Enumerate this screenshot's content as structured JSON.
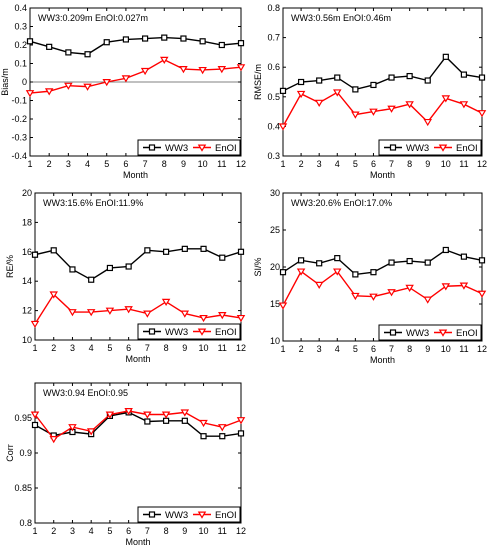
{
  "colors": {
    "ww3": "#000000",
    "enoi": "#ff0000",
    "zero_line": "#808080"
  },
  "legend": {
    "ww3": "WW3",
    "enoi": "EnOI"
  },
  "chart_data": [
    {
      "type": "line",
      "annotation": "WW3:0.209m  EnOI:0.027m",
      "xlabel": "Month",
      "ylabel": "Bias/m",
      "x": [
        1,
        2,
        3,
        4,
        5,
        6,
        7,
        8,
        9,
        10,
        11,
        12
      ],
      "xlim": [
        1,
        12
      ],
      "ylim": [
        -0.4,
        0.4
      ],
      "yticks": [
        -0.4,
        -0.3,
        -0.2,
        -0.1,
        0,
        0.1,
        0.2,
        0.3,
        0.4
      ],
      "ytick_labels": [
        "-0.4",
        "-0.3",
        "-0.2",
        "-0.1",
        "0",
        "0.1",
        "0.2",
        "0.3",
        "0.4"
      ],
      "zero_line": true,
      "legend_position": "bottom-right",
      "series": [
        {
          "name": "WW3",
          "values": [
            0.22,
            0.19,
            0.16,
            0.15,
            0.215,
            0.23,
            0.235,
            0.24,
            0.235,
            0.22,
            0.2,
            0.21
          ]
        },
        {
          "name": "EnOI",
          "values": [
            -0.06,
            -0.05,
            -0.02,
            -0.025,
            0.0,
            0.02,
            0.06,
            0.12,
            0.07,
            0.065,
            0.07,
            0.08
          ]
        }
      ]
    },
    {
      "type": "line",
      "annotation": "WW3:0.56m  EnOI:0.46m",
      "xlabel": "Month",
      "ylabel": "RMSE/m",
      "x": [
        1,
        2,
        3,
        4,
        5,
        6,
        7,
        8,
        9,
        10,
        11,
        12
      ],
      "xlim": [
        1,
        12
      ],
      "ylim": [
        0.3,
        0.8
      ],
      "yticks": [
        0.3,
        0.4,
        0.5,
        0.6,
        0.7,
        0.8
      ],
      "ytick_labels": [
        "0.3",
        "0.4",
        "0.5",
        "0.6",
        "0.7",
        "0.8"
      ],
      "zero_line": false,
      "legend_position": "bottom-right",
      "series": [
        {
          "name": "WW3",
          "values": [
            0.52,
            0.55,
            0.555,
            0.565,
            0.525,
            0.54,
            0.565,
            0.57,
            0.555,
            0.635,
            0.575,
            0.565
          ]
        },
        {
          "name": "EnOI",
          "values": [
            0.4,
            0.51,
            0.48,
            0.515,
            0.44,
            0.45,
            0.46,
            0.475,
            0.415,
            0.495,
            0.475,
            0.445
          ]
        }
      ]
    },
    {
      "type": "line",
      "annotation": "WW3:15.6%  EnOI:11.9%",
      "xlabel": "Month",
      "ylabel": "RE/%",
      "x": [
        1,
        2,
        3,
        4,
        5,
        6,
        7,
        8,
        9,
        10,
        11,
        12
      ],
      "xlim": [
        1,
        12
      ],
      "ylim": [
        10,
        20
      ],
      "yticks": [
        10,
        12,
        14,
        16,
        18,
        20
      ],
      "ytick_labels": [
        "10",
        "12",
        "14",
        "16",
        "18",
        "20"
      ],
      "zero_line": false,
      "legend_position": "bottom-right",
      "series": [
        {
          "name": "WW3",
          "values": [
            15.8,
            16.1,
            14.8,
            14.1,
            14.9,
            15.0,
            16.1,
            16.0,
            16.2,
            16.2,
            15.6,
            16.0
          ]
        },
        {
          "name": "EnOI",
          "values": [
            11.1,
            13.1,
            11.9,
            11.9,
            12.0,
            12.1,
            11.8,
            12.6,
            11.8,
            11.5,
            11.7,
            11.5
          ]
        }
      ]
    },
    {
      "type": "line",
      "annotation": "WW3:20.6%  EnOI:17.0%",
      "xlabel": "Month",
      "ylabel": "SI/%",
      "x": [
        1,
        2,
        3,
        4,
        5,
        6,
        7,
        8,
        9,
        10,
        11,
        12
      ],
      "xlim": [
        1,
        12
      ],
      "ylim": [
        10,
        30
      ],
      "yticks": [
        10,
        15,
        20,
        25,
        30
      ],
      "ytick_labels": [
        "10",
        "15",
        "20",
        "25",
        "30"
      ],
      "zero_line": false,
      "legend_position": "bottom-right",
      "series": [
        {
          "name": "WW3",
          "values": [
            19.3,
            20.9,
            20.5,
            21.2,
            19.0,
            19.3,
            20.6,
            20.8,
            20.6,
            22.3,
            21.4,
            20.9
          ]
        },
        {
          "name": "EnOI",
          "values": [
            14.8,
            19.4,
            17.6,
            19.4,
            16.1,
            16.0,
            16.6,
            17.2,
            15.6,
            17.4,
            17.5,
            16.4
          ]
        }
      ]
    },
    {
      "type": "line",
      "annotation": "WW3:0.94  EnOI:0.95",
      "xlabel": "Month",
      "ylabel": "Corr",
      "x": [
        1,
        2,
        3,
        4,
        5,
        6,
        7,
        8,
        9,
        10,
        11,
        12
      ],
      "xlim": [
        1,
        12
      ],
      "ylim": [
        0.8,
        1.0
      ],
      "yticks": [
        0.8,
        0.85,
        0.9,
        0.95
      ],
      "ytick_labels": [
        "0.8",
        "0.85",
        "0.9",
        "0.95"
      ],
      "zero_line": false,
      "legend_position": "bottom-right",
      "series": [
        {
          "name": "WW3",
          "values": [
            0.94,
            0.925,
            0.93,
            0.927,
            0.953,
            0.958,
            0.945,
            0.946,
            0.946,
            0.924,
            0.924,
            0.928
          ]
        },
        {
          "name": "EnOI",
          "values": [
            0.955,
            0.92,
            0.937,
            0.931,
            0.955,
            0.96,
            0.955,
            0.955,
            0.958,
            0.943,
            0.937,
            0.947
          ]
        }
      ]
    }
  ]
}
